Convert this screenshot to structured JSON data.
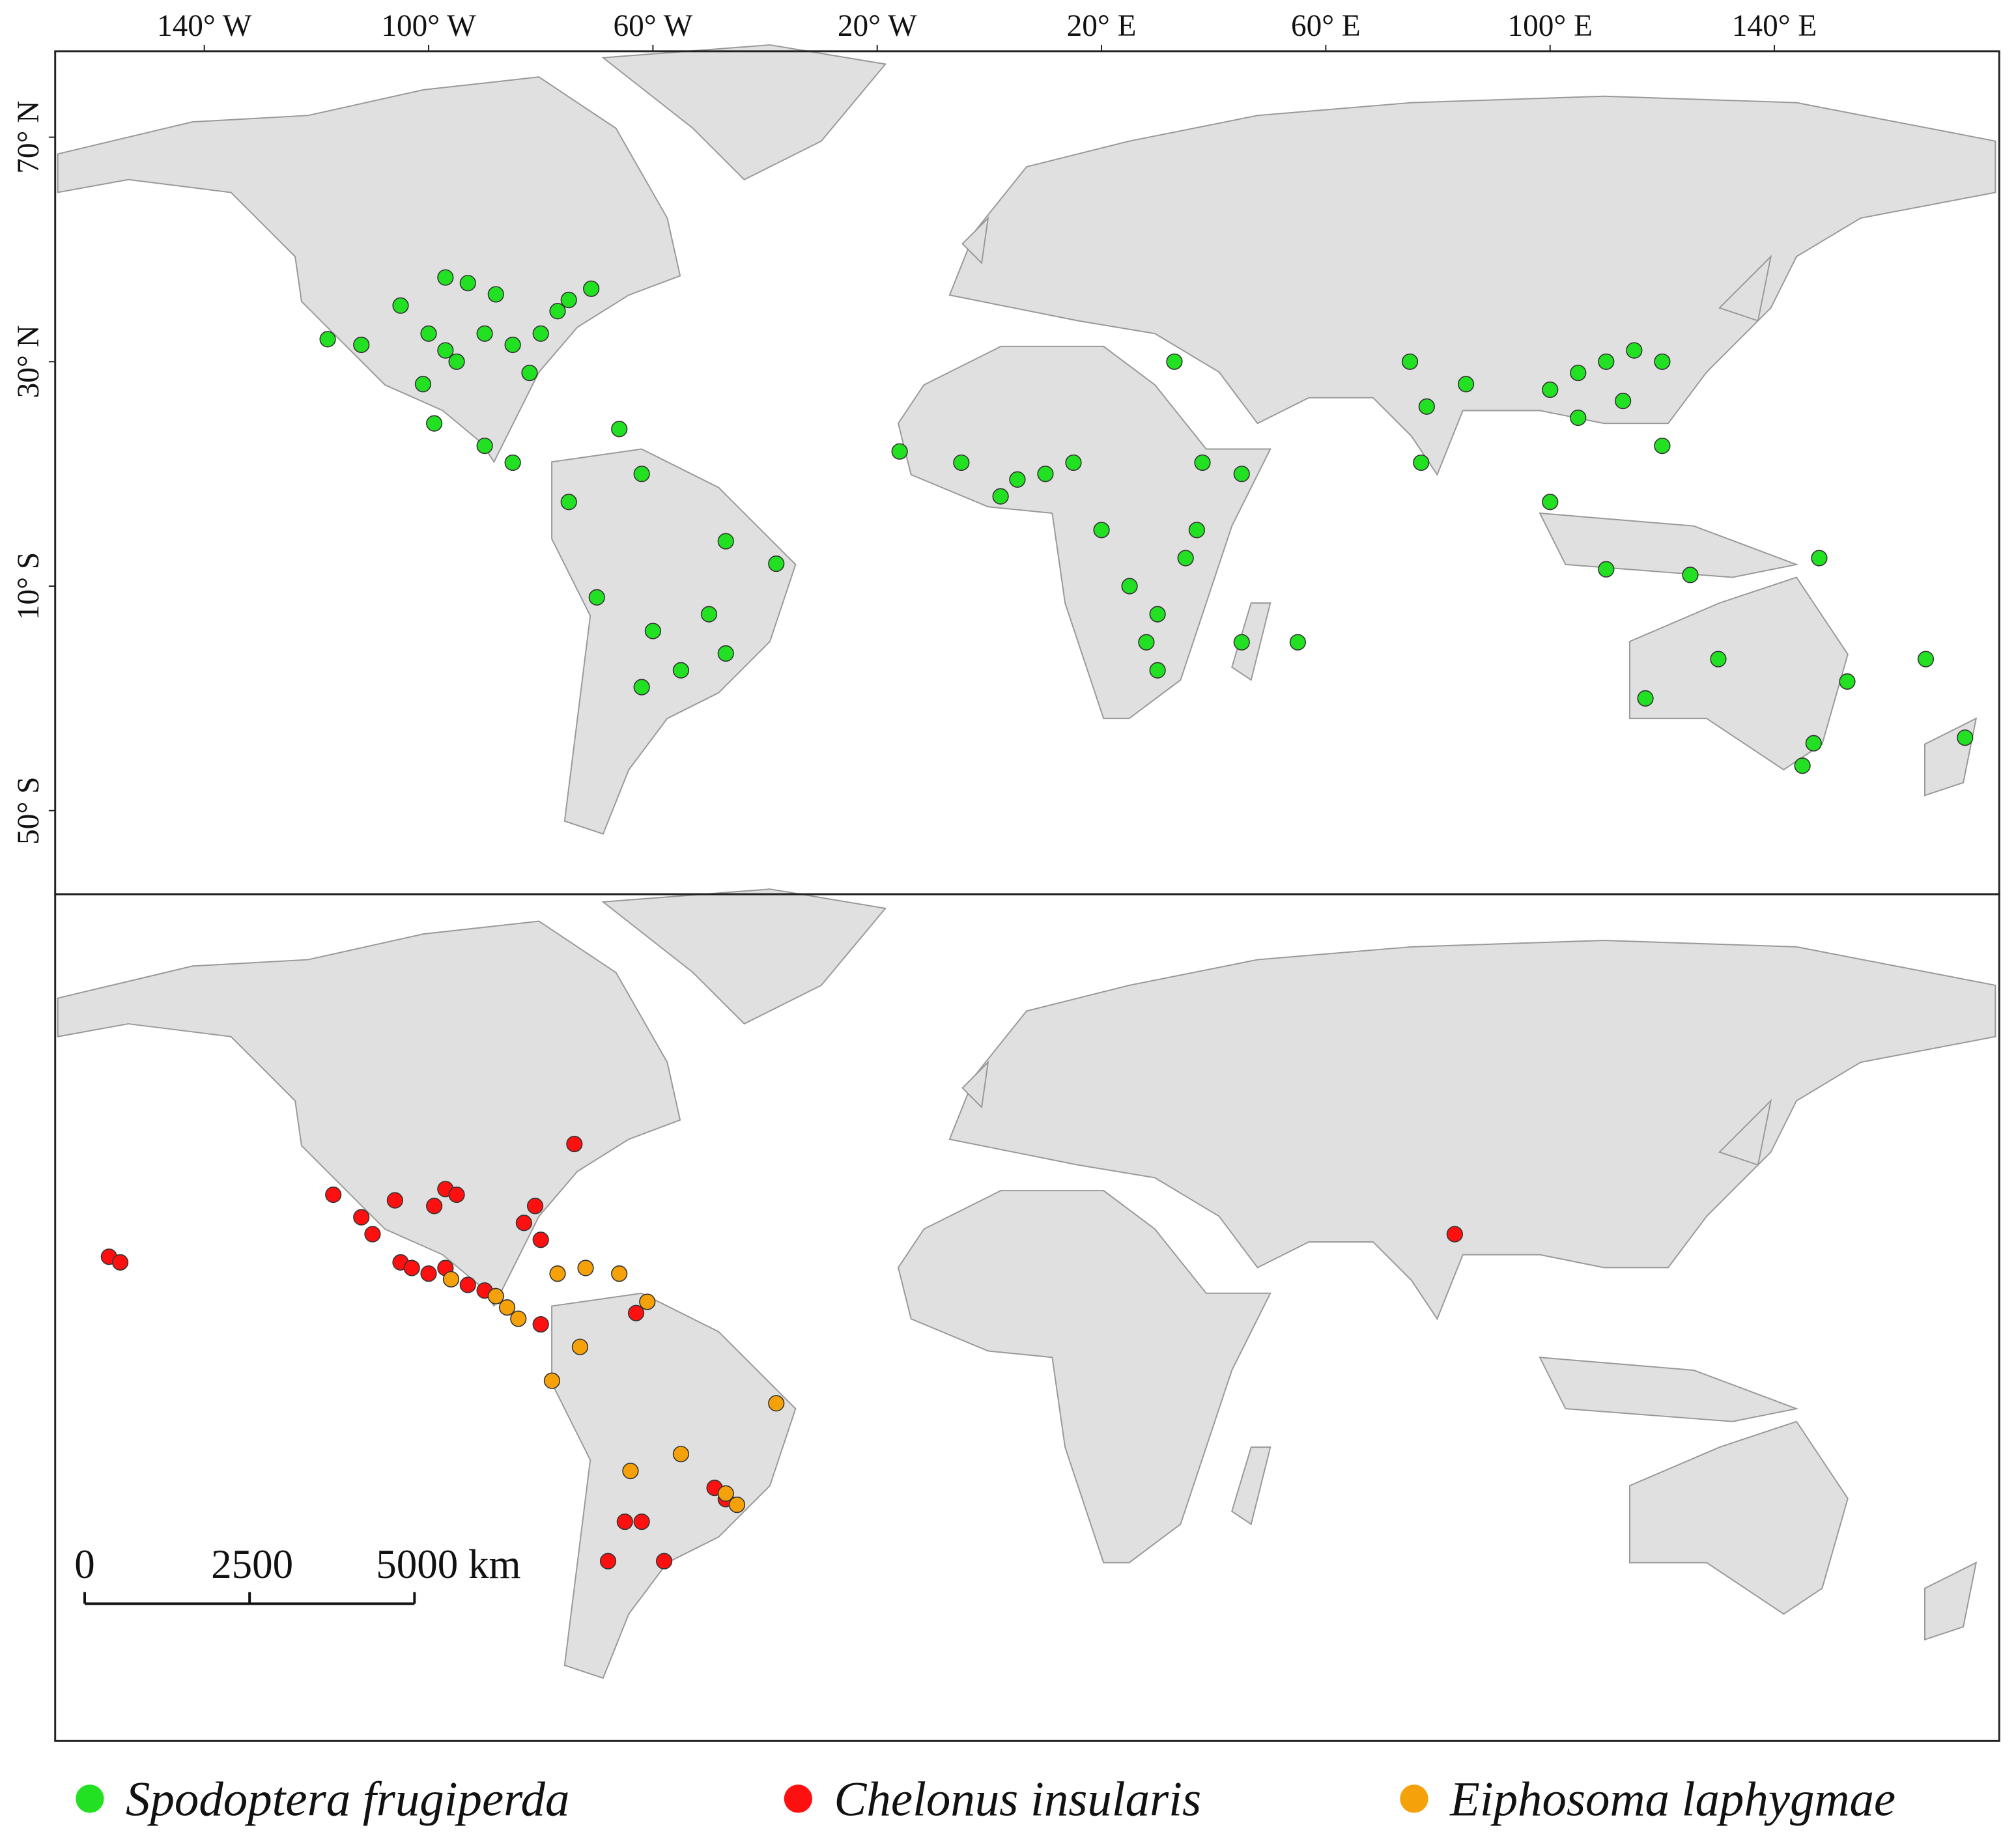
{
  "chart_data": [
    {
      "type": "map",
      "xlim": [
        -166.6,
        180.1
      ],
      "ylim": [
        -64.9,
        85.3
      ],
      "xticks": [
        {
          "value": -140,
          "label": "140° W"
        },
        {
          "value": -100,
          "label": "100° W"
        },
        {
          "value": -60,
          "label": "60° W"
        },
        {
          "value": -20,
          "label": "20° W"
        },
        {
          "value": 20,
          "label": "20° E"
        },
        {
          "value": 60,
          "label": "60° E"
        },
        {
          "value": 100,
          "label": "100° E"
        },
        {
          "value": 140,
          "label": "140° E"
        }
      ],
      "yticks": [
        {
          "value": 70,
          "label": "70° N"
        },
        {
          "value": 30,
          "label": "30° N"
        },
        {
          "value": -10,
          "label": "10° S"
        },
        {
          "value": -50,
          "label": "50° S"
        }
      ],
      "series": [
        {
          "name": "Spodoptera frugiperda",
          "color": "#22e022",
          "lon": [
            -118,
            -112,
            -105,
            -100,
            -97,
            -95,
            -90,
            -85,
            -82,
            -80,
            -77,
            -75,
            -88,
            -93,
            -97,
            -71,
            -101,
            -99,
            -90,
            -85,
            -66,
            -75,
            -62,
            -47,
            -38,
            -50,
            -47,
            -55,
            -62,
            -60,
            -70,
            -16,
            -5,
            5,
            10,
            15,
            2,
            33,
            38,
            37,
            35,
            30,
            28,
            30,
            25,
            20,
            45,
            55,
            45,
            75,
            78,
            77,
            85,
            100,
            105,
            110,
            115,
            120,
            113,
            105,
            120,
            110,
            125,
            100,
            130,
            153,
            147,
            145,
            117,
            148,
            174,
            167
          ],
          "lat": [
            34,
            33,
            40,
            35,
            32,
            30,
            35,
            33,
            28,
            35,
            39,
            41,
            42,
            44,
            45,
            43,
            26,
            19,
            15,
            12,
            18,
            5,
            10,
            -2,
            -6,
            -15,
            -22,
            -25,
            -28,
            -18,
            -12,
            14,
            12,
            9,
            10,
            12,
            6,
            30,
            12,
            0,
            -5,
            -15,
            -20,
            -25,
            -10,
            0,
            -20,
            -20,
            10,
            30,
            22,
            12,
            26,
            25,
            28,
            30,
            32,
            30,
            23,
            20,
            15,
            -7,
            -8,
            5,
            -23,
            -27,
            -38,
            -42,
            -30,
            -5,
            -37,
            -23
          ]
        }
      ]
    },
    {
      "type": "map",
      "xlim": [
        -166.6,
        180.1
      ],
      "ylim": [
        -64.9,
        85.3
      ],
      "scale_bar": {
        "ticks": [
          0,
          2500,
          {
            "value": 5000,
            "label": "5000 km"
          }
        ]
      },
      "series": [
        {
          "name": "Chelonus insularis",
          "color": "#ff1010",
          "lon": [
            -117,
            -112,
            -110,
            -105,
            -103,
            -100,
            -97,
            -93,
            -90,
            -106,
            -99,
            -97,
            -95,
            -81,
            -83,
            -80,
            -74,
            -157,
            -155,
            -65,
            -62,
            -58,
            -68,
            -47,
            -49,
            83,
            -80,
            -63
          ],
          "lat": [
            32,
            28,
            25,
            20,
            19,
            18,
            19,
            16,
            15,
            31,
            30,
            33,
            32,
            30,
            27,
            24,
            41,
            21,
            20,
            -26,
            -26,
            -33,
            -33,
            -22,
            -20,
            25,
            9,
            11
          ]
        },
        {
          "name": "Eiphosoma laphygmae",
          "color": "#f5a10a",
          "lon": [
            -96,
            -88,
            -86,
            -84,
            -77,
            -72,
            -66,
            -61,
            -73,
            -78,
            -64,
            -55,
            -47,
            -45,
            -38
          ],
          "lat": [
            17,
            14,
            12,
            10,
            18,
            19,
            18,
            13,
            5,
            -1,
            -17,
            -14,
            -21,
            -23,
            -5
          ]
        }
      ]
    }
  ]
}
